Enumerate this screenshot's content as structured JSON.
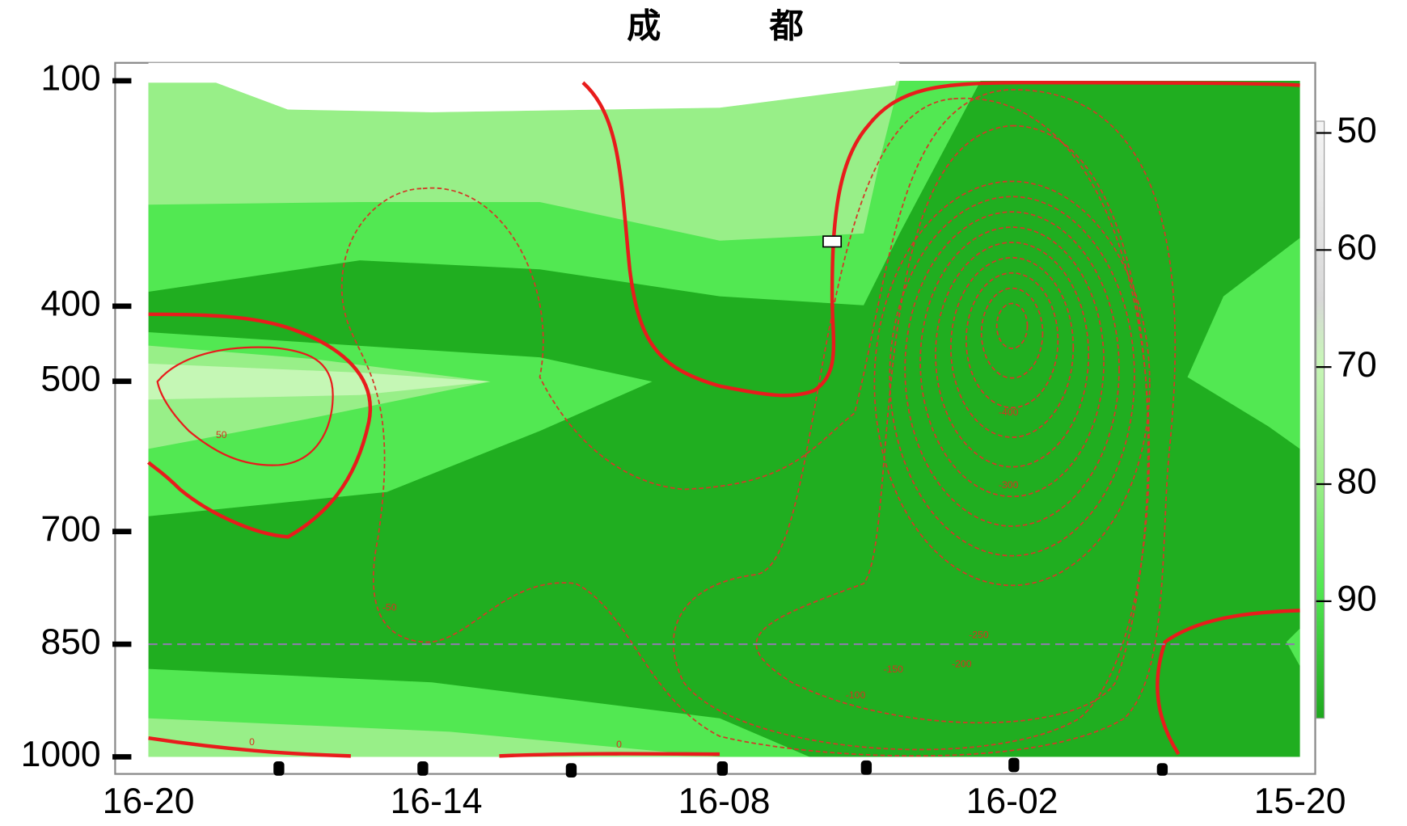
{
  "chart_data": {
    "type": "contour",
    "title": "成 都",
    "categories": [
      "16-20",
      "16-14",
      "16-08",
      "16-02",
      "15-20"
    ],
    "ylim": [
      1000,
      100
    ],
    "yticks": [
      100,
      400,
      500,
      700,
      850,
      1000
    ],
    "reference_line": 850,
    "colorbar": {
      "lim": [
        49,
        100
      ],
      "ticks": [
        50,
        60,
        70,
        80,
        90
      ]
    },
    "annotations": [
      "50",
      "-50",
      "-100",
      "-150",
      "-200",
      "-250",
      "-300",
      "-400",
      "0",
      "0"
    ]
  }
}
